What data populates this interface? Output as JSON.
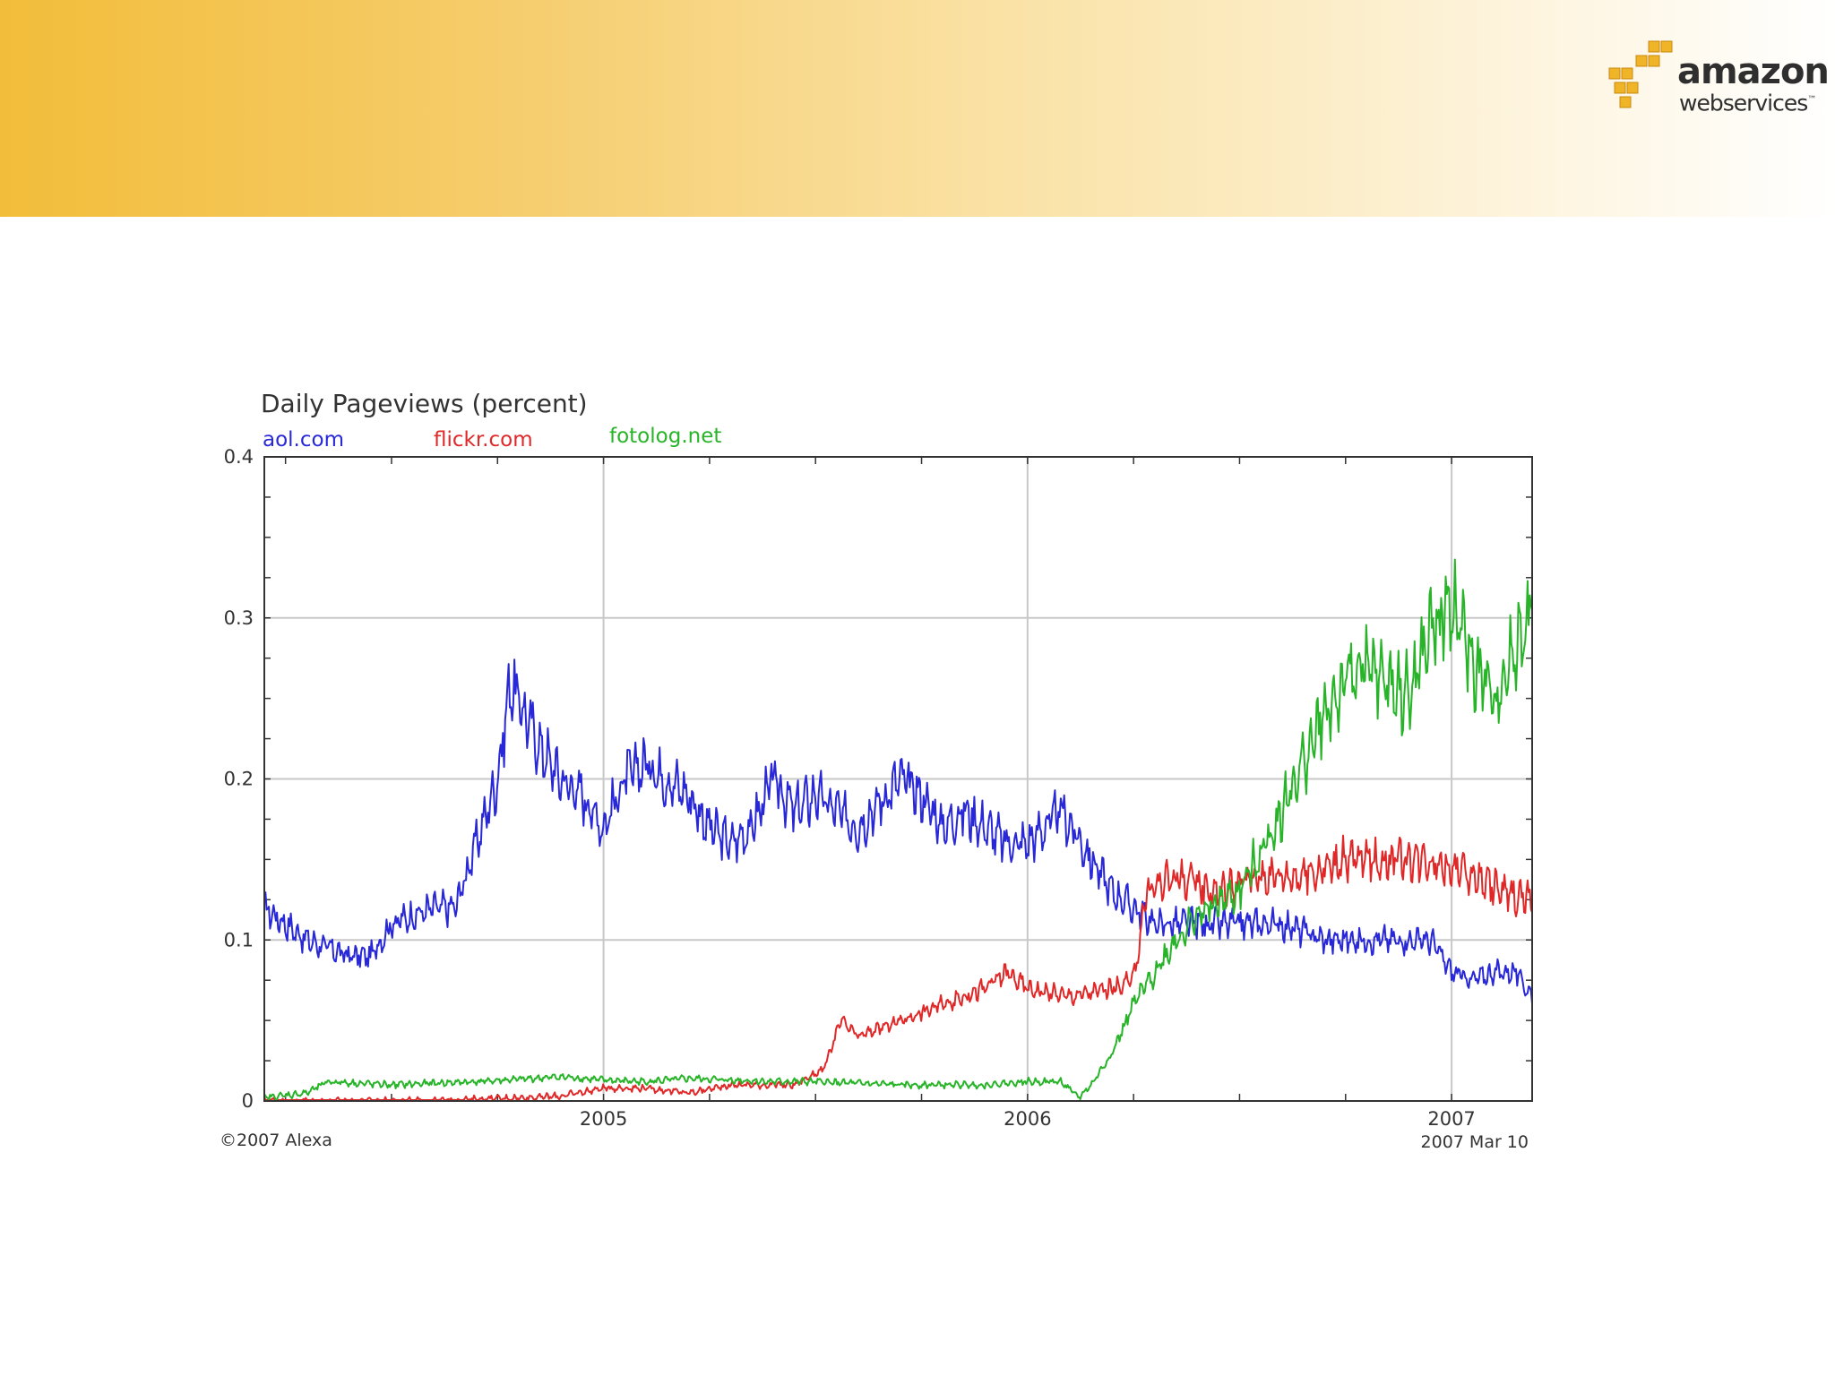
{
  "logo": {
    "word": "amazon",
    "sub": "webservices",
    "tm": "™"
  },
  "chart_data": {
    "type": "line",
    "title": "Daily Pageviews (percent)",
    "ylim": [
      0,
      0.4
    ],
    "yticks": [
      "0",
      "0.1",
      "0.2",
      "0.3",
      "0.4"
    ],
    "xlim": [
      2004.2,
      2007.19
    ],
    "xticks": [
      {
        "value": 2005,
        "label": "2005"
      },
      {
        "value": 2006,
        "label": "2006"
      },
      {
        "value": 2007,
        "label": "2007"
      }
    ],
    "grid": true,
    "legend_position": "top-left",
    "copyright": "©2007 Alexa",
    "date_stamp": "2007 Mar 10",
    "series": [
      {
        "name": "aol.com",
        "color": "#2828d8",
        "points": [
          [
            2004.2,
            0.12
          ],
          [
            2004.3,
            0.1
          ],
          [
            2004.4,
            0.09
          ],
          [
            2004.45,
            0.09
          ],
          [
            2004.5,
            0.11
          ],
          [
            2004.6,
            0.12
          ],
          [
            2004.65,
            0.12
          ],
          [
            2004.7,
            0.16
          ],
          [
            2004.75,
            0.2
          ],
          [
            2004.78,
            0.26
          ],
          [
            2004.85,
            0.22
          ],
          [
            2004.9,
            0.2
          ],
          [
            2004.95,
            0.19
          ],
          [
            2005.0,
            0.17
          ],
          [
            2005.05,
            0.2
          ],
          [
            2005.1,
            0.21
          ],
          [
            2005.15,
            0.2
          ],
          [
            2005.2,
            0.19
          ],
          [
            2005.25,
            0.17
          ],
          [
            2005.3,
            0.16
          ],
          [
            2005.35,
            0.17
          ],
          [
            2005.4,
            0.2
          ],
          [
            2005.45,
            0.18
          ],
          [
            2005.5,
            0.19
          ],
          [
            2005.55,
            0.18
          ],
          [
            2005.6,
            0.17
          ],
          [
            2005.7,
            0.2
          ],
          [
            2005.75,
            0.19
          ],
          [
            2005.8,
            0.17
          ],
          [
            2005.85,
            0.18
          ],
          [
            2005.9,
            0.17
          ],
          [
            2005.95,
            0.16
          ],
          [
            2006.0,
            0.16
          ],
          [
            2006.08,
            0.18
          ],
          [
            2006.15,
            0.15
          ],
          [
            2006.2,
            0.13
          ],
          [
            2006.25,
            0.12
          ],
          [
            2006.3,
            0.11
          ],
          [
            2006.4,
            0.11
          ],
          [
            2006.5,
            0.11
          ],
          [
            2006.6,
            0.11
          ],
          [
            2006.7,
            0.1
          ],
          [
            2006.8,
            0.1
          ],
          [
            2006.9,
            0.1
          ],
          [
            2006.95,
            0.1
          ],
          [
            2007.0,
            0.08
          ],
          [
            2007.05,
            0.075
          ],
          [
            2007.1,
            0.08
          ],
          [
            2007.15,
            0.08
          ],
          [
            2007.19,
            0.065
          ]
        ]
      },
      {
        "name": "flickr.com",
        "color": "#e02828",
        "points": [
          [
            2004.2,
            0.0
          ],
          [
            2004.6,
            0.0
          ],
          [
            2004.7,
            0.001
          ],
          [
            2004.9,
            0.003
          ],
          [
            2005.0,
            0.008
          ],
          [
            2005.1,
            0.008
          ],
          [
            2005.2,
            0.005
          ],
          [
            2005.3,
            0.01
          ],
          [
            2005.4,
            0.01
          ],
          [
            2005.45,
            0.01
          ],
          [
            2005.52,
            0.02
          ],
          [
            2005.56,
            0.05
          ],
          [
            2005.6,
            0.04
          ],
          [
            2005.7,
            0.05
          ],
          [
            2005.8,
            0.06
          ],
          [
            2005.9,
            0.07
          ],
          [
            2005.95,
            0.08
          ],
          [
            2006.0,
            0.07
          ],
          [
            2006.1,
            0.065
          ],
          [
            2006.2,
            0.07
          ],
          [
            2006.25,
            0.075
          ],
          [
            2006.28,
            0.13
          ],
          [
            2006.35,
            0.14
          ],
          [
            2006.45,
            0.13
          ],
          [
            2006.55,
            0.14
          ],
          [
            2006.65,
            0.14
          ],
          [
            2006.75,
            0.15
          ],
          [
            2006.85,
            0.15
          ],
          [
            2006.95,
            0.15
          ],
          [
            2007.05,
            0.14
          ],
          [
            2007.12,
            0.13
          ],
          [
            2007.19,
            0.125
          ]
        ]
      },
      {
        "name": "fotolog.net",
        "color": "#28b428",
        "points": [
          [
            2004.2,
            0.002
          ],
          [
            2004.3,
            0.005
          ],
          [
            2004.35,
            0.012
          ],
          [
            2004.5,
            0.01
          ],
          [
            2004.7,
            0.012
          ],
          [
            2004.9,
            0.015
          ],
          [
            2005.0,
            0.013
          ],
          [
            2005.1,
            0.012
          ],
          [
            2005.2,
            0.014
          ],
          [
            2005.3,
            0.013
          ],
          [
            2005.4,
            0.012
          ],
          [
            2005.5,
            0.012
          ],
          [
            2005.6,
            0.011
          ],
          [
            2005.7,
            0.01
          ],
          [
            2005.8,
            0.01
          ],
          [
            2005.9,
            0.01
          ],
          [
            2006.0,
            0.012
          ],
          [
            2006.08,
            0.012
          ],
          [
            2006.12,
            0.002
          ],
          [
            2006.15,
            0.01
          ],
          [
            2006.2,
            0.03
          ],
          [
            2006.25,
            0.06
          ],
          [
            2006.3,
            0.08
          ],
          [
            2006.35,
            0.1
          ],
          [
            2006.4,
            0.115
          ],
          [
            2006.5,
            0.13
          ],
          [
            2006.6,
            0.18
          ],
          [
            2006.7,
            0.24
          ],
          [
            2006.78,
            0.27
          ],
          [
            2006.85,
            0.26
          ],
          [
            2006.9,
            0.25
          ],
          [
            2006.95,
            0.29
          ],
          [
            2007.0,
            0.31
          ],
          [
            2007.05,
            0.27
          ],
          [
            2007.1,
            0.25
          ],
          [
            2007.15,
            0.28
          ],
          [
            2007.19,
            0.31
          ]
        ]
      }
    ]
  }
}
